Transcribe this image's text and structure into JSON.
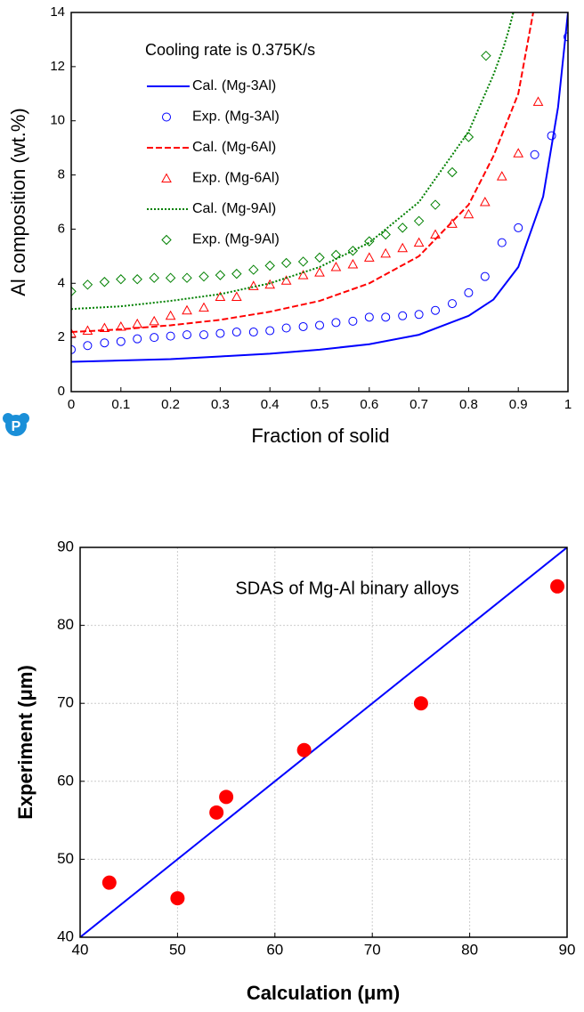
{
  "chart_data": [
    {
      "type": "line",
      "annotation": "Cooling rate is 0.375K/s",
      "x_label": "Fraction of solid",
      "y_label": "Al composition (wt.%)",
      "xlim": [
        0,
        1
      ],
      "ylim": [
        0,
        14
      ],
      "xticks": [
        0,
        0.1,
        0.2,
        0.3,
        0.4,
        0.5,
        0.6,
        0.7,
        0.8,
        0.9,
        1
      ],
      "yticks": [
        0,
        2,
        4,
        6,
        8,
        10,
        12,
        14
      ],
      "grid": false,
      "legend": "upper left",
      "series": [
        {
          "name": "Cal. (Mg-3Al)",
          "color": "#0000ff",
          "kind": "line",
          "dash": "solid",
          "x": [
            0,
            0.1,
            0.2,
            0.3,
            0.4,
            0.5,
            0.6,
            0.7,
            0.8,
            0.85,
            0.9,
            0.95,
            0.98,
            1.0
          ],
          "values": [
            1.1,
            1.15,
            1.2,
            1.3,
            1.4,
            1.55,
            1.75,
            2.1,
            2.8,
            3.4,
            4.6,
            7.2,
            10.5,
            14
          ]
        },
        {
          "name": "Exp. (Mg-3Al)",
          "color": "#0000ff",
          "kind": "marker",
          "marker": "circle",
          "x": [
            0,
            0.033,
            0.067,
            0.1,
            0.133,
            0.167,
            0.2,
            0.233,
            0.267,
            0.3,
            0.333,
            0.367,
            0.4,
            0.433,
            0.467,
            0.5,
            0.533,
            0.567,
            0.6,
            0.633,
            0.667,
            0.7,
            0.733,
            0.767,
            0.8,
            0.833,
            0.867,
            0.9,
            0.933,
            0.967,
            1.0
          ],
          "values": [
            1.55,
            1.7,
            1.8,
            1.85,
            1.95,
            2.0,
            2.05,
            2.1,
            2.1,
            2.15,
            2.2,
            2.2,
            2.25,
            2.35,
            2.4,
            2.45,
            2.55,
            2.6,
            2.75,
            2.75,
            2.8,
            2.85,
            3.0,
            3.25,
            3.65,
            4.25,
            5.5,
            6.05,
            8.75,
            9.45,
            13.1
          ]
        },
        {
          "name": "Cal. (Mg-6Al)",
          "color": "#ff0000",
          "kind": "line",
          "dash": "dashed",
          "x": [
            0,
            0.1,
            0.2,
            0.3,
            0.4,
            0.5,
            0.6,
            0.7,
            0.8,
            0.85,
            0.9,
            0.92,
            0.93
          ],
          "values": [
            2.2,
            2.3,
            2.45,
            2.65,
            2.95,
            3.35,
            4.0,
            5.0,
            6.9,
            8.7,
            11.0,
            13.0,
            14
          ]
        },
        {
          "name": "Exp. (Mg-6Al)",
          "color": "#ff0000",
          "kind": "marker",
          "marker": "triangle",
          "x": [
            0,
            0.033,
            0.067,
            0.1,
            0.133,
            0.167,
            0.2,
            0.233,
            0.267,
            0.3,
            0.333,
            0.367,
            0.4,
            0.433,
            0.467,
            0.5,
            0.533,
            0.567,
            0.6,
            0.633,
            0.667,
            0.7,
            0.733,
            0.767,
            0.8,
            0.833,
            0.867,
            0.9,
            0.94
          ],
          "values": [
            2.15,
            2.25,
            2.35,
            2.4,
            2.5,
            2.6,
            2.8,
            3.0,
            3.1,
            3.5,
            3.5,
            3.9,
            3.95,
            4.1,
            4.3,
            4.4,
            4.6,
            4.7,
            4.95,
            5.1,
            5.3,
            5.5,
            5.8,
            6.2,
            6.55,
            7.0,
            7.95,
            8.8,
            10.7
          ]
        },
        {
          "name": "Cal. (Mg-9Al)",
          "color": "#008000",
          "kind": "line",
          "dash": "dotted",
          "x": [
            0,
            0.1,
            0.2,
            0.3,
            0.4,
            0.5,
            0.6,
            0.7,
            0.8,
            0.85,
            0.87,
            0.88,
            0.89
          ],
          "values": [
            3.05,
            3.15,
            3.35,
            3.6,
            4.0,
            4.6,
            5.5,
            7.0,
            9.6,
            11.7,
            12.7,
            13.3,
            14
          ]
        },
        {
          "name": "Exp. (Mg-9Al)",
          "color": "#008000",
          "kind": "marker",
          "marker": "diamond",
          "x": [
            0,
            0.033,
            0.067,
            0.1,
            0.133,
            0.167,
            0.2,
            0.233,
            0.267,
            0.3,
            0.333,
            0.367,
            0.4,
            0.433,
            0.467,
            0.5,
            0.533,
            0.567,
            0.6,
            0.633,
            0.667,
            0.7,
            0.733,
            0.767,
            0.8,
            0.835
          ],
          "values": [
            3.7,
            3.95,
            4.05,
            4.15,
            4.15,
            4.2,
            4.2,
            4.2,
            4.25,
            4.3,
            4.35,
            4.5,
            4.65,
            4.75,
            4.8,
            4.95,
            5.05,
            5.2,
            5.55,
            5.8,
            6.05,
            6.3,
            6.9,
            8.1,
            9.4,
            12.4
          ]
        }
      ]
    },
    {
      "type": "scatter",
      "title": "SDAS of Mg-Al binary alloys",
      "x_label": "Calculation (μm)",
      "y_label": "Experiment (μm)",
      "xlim": [
        40,
        90
      ],
      "ylim": [
        40,
        90
      ],
      "xticks": [
        40,
        50,
        60,
        70,
        80,
        90
      ],
      "yticks": [
        40,
        50,
        60,
        70,
        80,
        90
      ],
      "grid": true,
      "series": [
        {
          "color": "#0000ff",
          "kind": "line",
          "dash": "solid",
          "x": [
            40,
            90
          ],
          "values": [
            40,
            90
          ]
        },
        {
          "color": "#ff0000",
          "kind": "marker",
          "marker": "disc",
          "x": [
            43,
            50,
            54,
            55,
            63,
            75,
            89
          ],
          "values": [
            47,
            45,
            56,
            58,
            64,
            70,
            85
          ]
        }
      ]
    }
  ]
}
